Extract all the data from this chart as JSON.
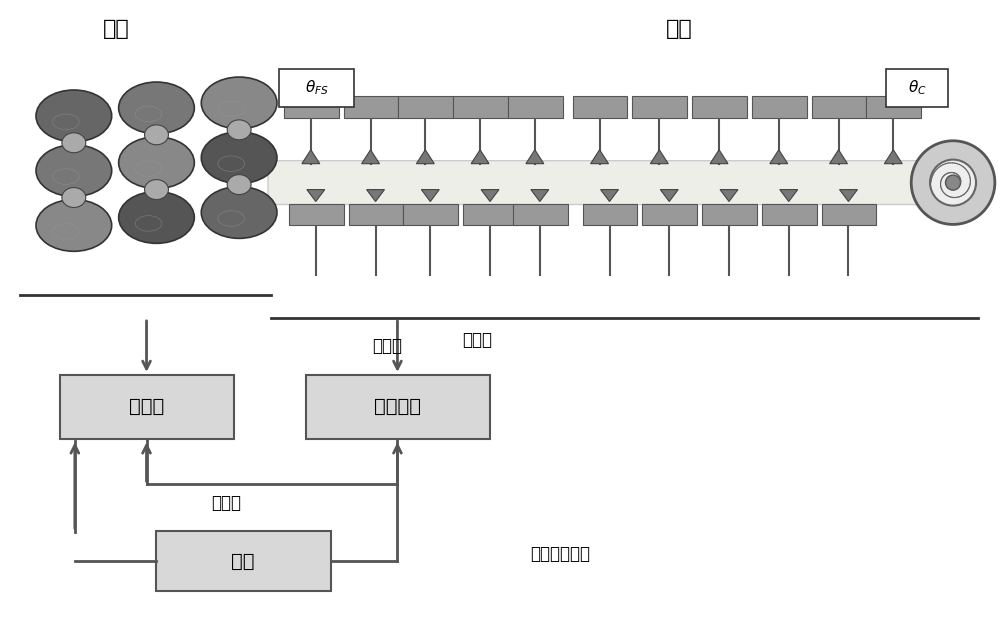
{
  "title_jingzha": "精轧",
  "title_jingleng": "精冷",
  "label_theta_fs": "θ_{FS}",
  "label_theta_c": "θ_C",
  "label_sheding1": "设定值",
  "label_shiji": "实际值",
  "label_sheding2": "设定值",
  "label_zhizhi": "轧制带钢列表",
  "box1_text": "预计算",
  "box2_text": "实时控制",
  "box3_text": "调节",
  "box_fill": "#d8d8d8",
  "box_edge": "#555555",
  "arrow_color": "#555555",
  "strip_fill": "#e8e8e0",
  "block_top_fill": "#aaaaaa",
  "block_bot_fill": "#aaaaaa",
  "nozzle_fill": "#888888",
  "roller_colors": [
    "#555555",
    "#666666",
    "#777777",
    "#888888",
    "#999999",
    "#aaaaaa"
  ],
  "divider_color": "#444444",
  "bg_color": "#ffffff"
}
